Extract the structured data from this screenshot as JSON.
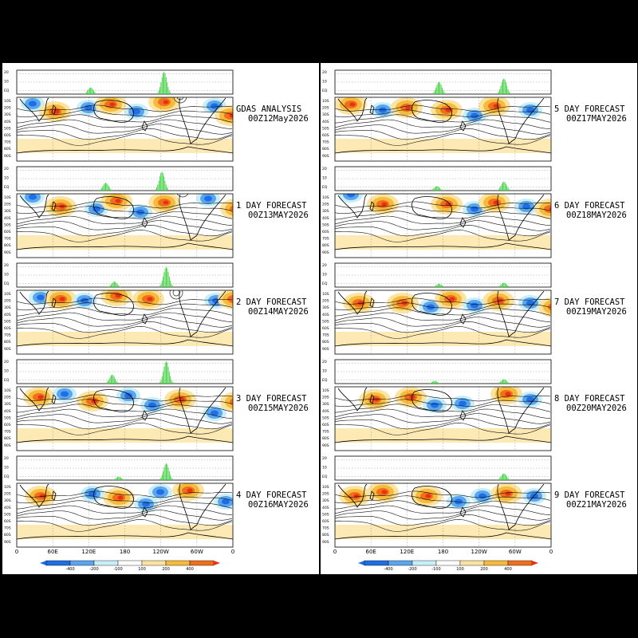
{
  "colors": {
    "neg_strong": "#1e6ee6",
    "neg_mid": "#5aa5f0",
    "neg_light": "#c8eefa",
    "pos_light": "#fde3a0",
    "pos_mid": "#f7ba3a",
    "pos_strong": "#f06e1c",
    "pos_max": "#e83012",
    "bar_green": "#3fd13f"
  },
  "columns": [
    {
      "id": "left",
      "panels": [
        {
          "title": "GDAS ANALYSIS",
          "date": "00Z12May2026",
          "bars": [
            [
              0.34,
              0.3
            ],
            [
              0.68,
              1.0
            ]
          ],
          "blobs": [
            [
              20,
              47,
              "n"
            ],
            [
              48,
              57,
              "p"
            ],
            [
              90,
              52,
              "n"
            ],
            [
              118,
              48,
              "p"
            ],
            [
              150,
              57,
              "n"
            ],
            [
              185,
              45,
              "p"
            ],
            [
              205,
              38,
              "c"
            ],
            [
              248,
              50,
              "n"
            ],
            [
              268,
              62,
              "p"
            ]
          ]
        },
        {
          "title": "1 DAY FORECAST",
          "date": "00Z13MAY2026",
          "bars": [
            [
              0.41,
              0.35
            ],
            [
              0.67,
              0.85
            ]
          ],
          "blobs": [
            [
              20,
              43,
              "n"
            ],
            [
              55,
              55,
              "p"
            ],
            [
              100,
              58,
              "n"
            ],
            [
              125,
              48,
              "p"
            ],
            [
              155,
              62,
              "n"
            ],
            [
              185,
              50,
              "p"
            ],
            [
              208,
              35,
              "c"
            ],
            [
              240,
              45,
              "n"
            ],
            [
              275,
              58,
              "p"
            ]
          ]
        },
        {
          "title": "2 DAY FORECAST",
          "date": "00Z14MAY2026",
          "bars": [
            [
              0.45,
              0.25
            ],
            [
              0.69,
              0.9
            ]
          ],
          "blobs": [
            [
              30,
              48,
              "n"
            ],
            [
              55,
              50,
              "p"
            ],
            [
              85,
              52,
              "n"
            ],
            [
              125,
              46,
              "p"
            ],
            [
              165,
              50,
              "p"
            ],
            [
              200,
              42,
              "c"
            ],
            [
              250,
              52,
              "n"
            ],
            [
              272,
              50,
              "p"
            ]
          ]
        },
        {
          "title": "3 DAY FORECAST",
          "date": "00Z15MAY2026",
          "bars": [
            [
              0.44,
              0.4
            ],
            [
              0.69,
              1.0
            ]
          ],
          "blobs": [
            [
              28,
              52,
              "p"
            ],
            [
              60,
              48,
              "n"
            ],
            [
              95,
              57,
              "p"
            ],
            [
              140,
              50,
              "n"
            ],
            [
              170,
              62,
              "n"
            ],
            [
              205,
              55,
              "p"
            ],
            [
              248,
              72,
              "n"
            ],
            [
              275,
              58,
              "p"
            ]
          ]
        },
        {
          "title": "4 DAY FORECAST",
          "date": "00Z16MAY2026",
          "bars": [
            [
              0.47,
              0.15
            ],
            [
              0.69,
              0.75
            ]
          ],
          "blobs": [
            [
              30,
              55,
              "p"
            ],
            [
              95,
              52,
              "n"
            ],
            [
              128,
              57,
              "p"
            ],
            [
              162,
              65,
              "n"
            ],
            [
              180,
              50,
              "n"
            ],
            [
              215,
              48,
              "p"
            ],
            [
              262,
              62,
              "n"
            ]
          ]
        }
      ]
    },
    {
      "id": "right",
      "panels": [
        {
          "title": "5 DAY FORECAST",
          "date": "00Z17MAY2026",
          "bars": [
            [
              0.48,
              0.55
            ],
            [
              0.78,
              0.7
            ]
          ],
          "blobs": [
            [
              20,
              48,
              "p"
            ],
            [
              60,
              55,
              "n"
            ],
            [
              90,
              52,
              "p"
            ],
            [
              140,
              55,
              "p"
            ],
            [
              175,
              62,
              "n"
            ],
            [
              200,
              50,
              "p"
            ],
            [
              245,
              55,
              "n"
            ]
          ]
        },
        {
          "title": "6 DAY FORECAST",
          "date": "00Z18MAY2026",
          "bars": [
            [
              0.47,
              0.2
            ],
            [
              0.78,
              0.4
            ]
          ],
          "blobs": [
            [
              20,
              40,
              "n"
            ],
            [
              60,
              52,
              "p"
            ],
            [
              140,
              52,
              "p"
            ],
            [
              175,
              58,
              "n"
            ],
            [
              200,
              50,
              "p"
            ],
            [
              240,
              55,
              "n"
            ],
            [
              270,
              58,
              "p"
            ]
          ]
        },
        {
          "title": "7 DAY FORECAST",
          "date": "00Z19MAY2026",
          "bars": [
            [
              0.48,
              0.15
            ],
            [
              0.78,
              0.2
            ]
          ],
          "blobs": [
            [
              30,
              55,
              "p"
            ],
            [
              85,
              55,
              "p"
            ],
            [
              120,
              60,
              "n"
            ],
            [
              145,
              50,
              "p"
            ],
            [
              175,
              58,
              "n"
            ],
            [
              205,
              52,
              "p"
            ],
            [
              245,
              55,
              "n"
            ],
            [
              275,
              60,
              "p"
            ]
          ]
        },
        {
          "title": "8 DAY FORECAST",
          "date": "00Z20MAY2026",
          "bars": [
            [
              0.46,
              0.12
            ],
            [
              0.78,
              0.2
            ]
          ],
          "blobs": [
            [
              50,
              55,
              "p"
            ],
            [
              95,
              52,
              "p"
            ],
            [
              125,
              62,
              "n"
            ],
            [
              160,
              60,
              "n"
            ],
            [
              215,
              48,
              "p"
            ],
            [
              245,
              55,
              "n"
            ]
          ]
        },
        {
          "title": "9 DAY FORECAST",
          "date": "00Z21MAY2026",
          "bars": [
            [
              0.78,
              0.3
            ]
          ],
          "blobs": [
            [
              25,
              55,
              "p"
            ],
            [
              60,
              50,
              "p"
            ],
            [
              115,
              55,
              "p"
            ],
            [
              155,
              62,
              "n"
            ],
            [
              185,
              55,
              "n"
            ],
            [
              215,
              52,
              "p"
            ],
            [
              250,
              55,
              "n"
            ]
          ]
        }
      ]
    }
  ],
  "bar_yticks": [
    "20",
    "10",
    "EQ"
  ],
  "map_yticks": [
    "10S",
    "20S",
    "30S",
    "40S",
    "50S",
    "60S",
    "70S",
    "80S",
    "90S"
  ],
  "xticks": [
    "0",
    "60E",
    "120E",
    "180",
    "120W",
    "60W",
    "0"
  ],
  "colorbar": {
    "labels": [
      "-400",
      "-200",
      "-100",
      "100",
      "200",
      "400"
    ]
  }
}
